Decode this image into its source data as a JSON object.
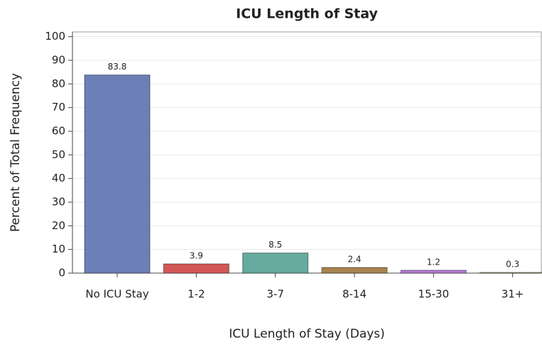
{
  "chart_data": {
    "type": "bar",
    "title": "ICU Length of Stay",
    "x_label": "ICU Length of Stay (Days)",
    "y_label": "Percent of Total Frequency",
    "categories": [
      "No ICU Stay",
      "1-2",
      "3-7",
      "8-14",
      "15-30",
      "31+"
    ],
    "values": [
      83.8,
      3.9,
      8.5,
      2.4,
      1.2,
      0.3
    ],
    "colors": [
      "#6c7fb6",
      "#d25757",
      "#66aaa0",
      "#a8834f",
      "#b87bd8",
      "#c9c48a"
    ],
    "ylim": [
      0,
      102
    ],
    "yticks": [
      0,
      10,
      20,
      30,
      40,
      50,
      60,
      70,
      80,
      90,
      100
    ],
    "grid": true
  }
}
